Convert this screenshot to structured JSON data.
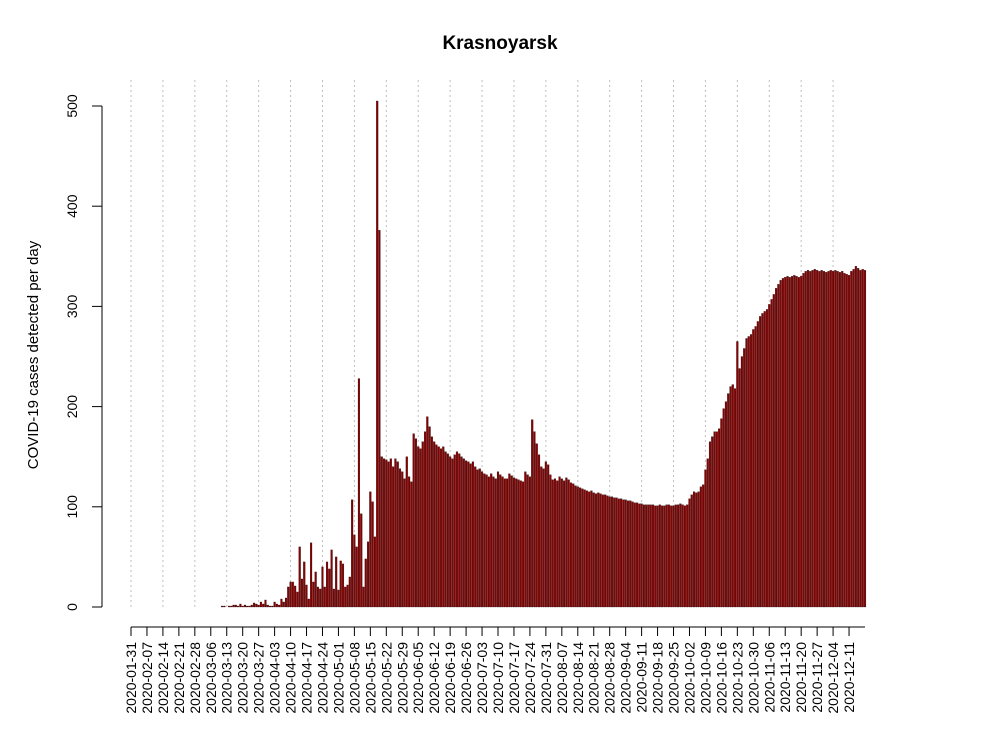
{
  "chart_data": {
    "type": "bar",
    "title": "Krasnoyarsk",
    "xlabel": "",
    "ylabel": "COVID-19 cases detected per day",
    "ylim": [
      0,
      500
    ],
    "yticks": [
      0,
      100,
      200,
      300,
      400,
      500
    ],
    "bar_color": "#8b0000",
    "bar_outline": "#000000",
    "grid_color": "#bebebe",
    "grid": "vertical dotted lines at every other date tick",
    "x_start": "2020-01-31",
    "x_end": "2020-12-11",
    "x_tick_labels": [
      "2020-01-31",
      "2020-02-07",
      "2020-02-14",
      "2020-02-21",
      "2020-02-28",
      "2020-03-06",
      "2020-03-13",
      "2020-03-20",
      "2020-03-27",
      "2020-04-03",
      "2020-04-10",
      "2020-04-17",
      "2020-04-24",
      "2020-05-01",
      "2020-05-08",
      "2020-05-15",
      "2020-05-22",
      "2020-05-29",
      "2020-06-05",
      "2020-06-12",
      "2020-06-19",
      "2020-06-26",
      "2020-07-03",
      "2020-07-10",
      "2020-07-17",
      "2020-07-24",
      "2020-07-31",
      "2020-08-07",
      "2020-08-14",
      "2020-08-21",
      "2020-08-28",
      "2020-09-04",
      "2020-09-11",
      "2020-09-18",
      "2020-09-25",
      "2020-10-02",
      "2020-10-09",
      "2020-10-16",
      "2020-10-23",
      "2020-10-30",
      "2020-11-06",
      "2020-11-13",
      "2020-11-20",
      "2020-11-27",
      "2020-12-04",
      "2020-12-11"
    ],
    "values": [
      0,
      0,
      0,
      0,
      0,
      0,
      0,
      0,
      0,
      0,
      0,
      0,
      0,
      0,
      0,
      0,
      0,
      0,
      0,
      0,
      0,
      0,
      0,
      0,
      0,
      0,
      0,
      0,
      0,
      0,
      0,
      0,
      0,
      0,
      0,
      0,
      0,
      0,
      0,
      0,
      1,
      1,
      0,
      1,
      1,
      2,
      2,
      1,
      3,
      1,
      2,
      1,
      1,
      2,
      4,
      3,
      2,
      5,
      3,
      7,
      2,
      1,
      1,
      5,
      3,
      2,
      8,
      5,
      9,
      20,
      25,
      25,
      21,
      15,
      60,
      28,
      45,
      22,
      8,
      64,
      25,
      35,
      20,
      18,
      40,
      20,
      45,
      38,
      57,
      18,
      50,
      17,
      46,
      43,
      20,
      22,
      30,
      107,
      72,
      60,
      228,
      93,
      20,
      48,
      65,
      115,
      105,
      70,
      505,
      376,
      150,
      148,
      147,
      145,
      148,
      140,
      148,
      145,
      138,
      135,
      128,
      150,
      130,
      125,
      173,
      168,
      160,
      158,
      165,
      175,
      190,
      180,
      170,
      165,
      162,
      160,
      158,
      160,
      155,
      153,
      150,
      148,
      152,
      155,
      153,
      150,
      148,
      146,
      145,
      143,
      145,
      140,
      137,
      138,
      135,
      133,
      132,
      130,
      133,
      130,
      128,
      135,
      132,
      130,
      128,
      128,
      133,
      131,
      129,
      128,
      127,
      126,
      125,
      135,
      132,
      130,
      187,
      175,
      163,
      152,
      140,
      138,
      145,
      142,
      132,
      127,
      128,
      126,
      130,
      128,
      126,
      129,
      127,
      124,
      123,
      121,
      120,
      119,
      118,
      117,
      116,
      115,
      116,
      114,
      113,
      114,
      113,
      112,
      112,
      111,
      110,
      110,
      109,
      109,
      108,
      108,
      107,
      107,
      106,
      106,
      105,
      104,
      104,
      103,
      103,
      102,
      102,
      102,
      102,
      102,
      101,
      101,
      102,
      101,
      101,
      102,
      102,
      101,
      101,
      102,
      102,
      103,
      102,
      101,
      102,
      108,
      112,
      115,
      114,
      115,
      120,
      122,
      137,
      148,
      165,
      170,
      175,
      175,
      178,
      188,
      198,
      205,
      213,
      220,
      222,
      218,
      265,
      238,
      250,
      258,
      268,
      270,
      272,
      277,
      280,
      285,
      290,
      293,
      295,
      297,
      302,
      307,
      312,
      318,
      322,
      326,
      328,
      329,
      330,
      329,
      330,
      331,
      330,
      329,
      330,
      333,
      335,
      336,
      335,
      336,
      337,
      336,
      335,
      336,
      335,
      334,
      335,
      336,
      335,
      336,
      335,
      334,
      335,
      333,
      332,
      331,
      335,
      337,
      340,
      338,
      336,
      337,
      336
    ]
  }
}
